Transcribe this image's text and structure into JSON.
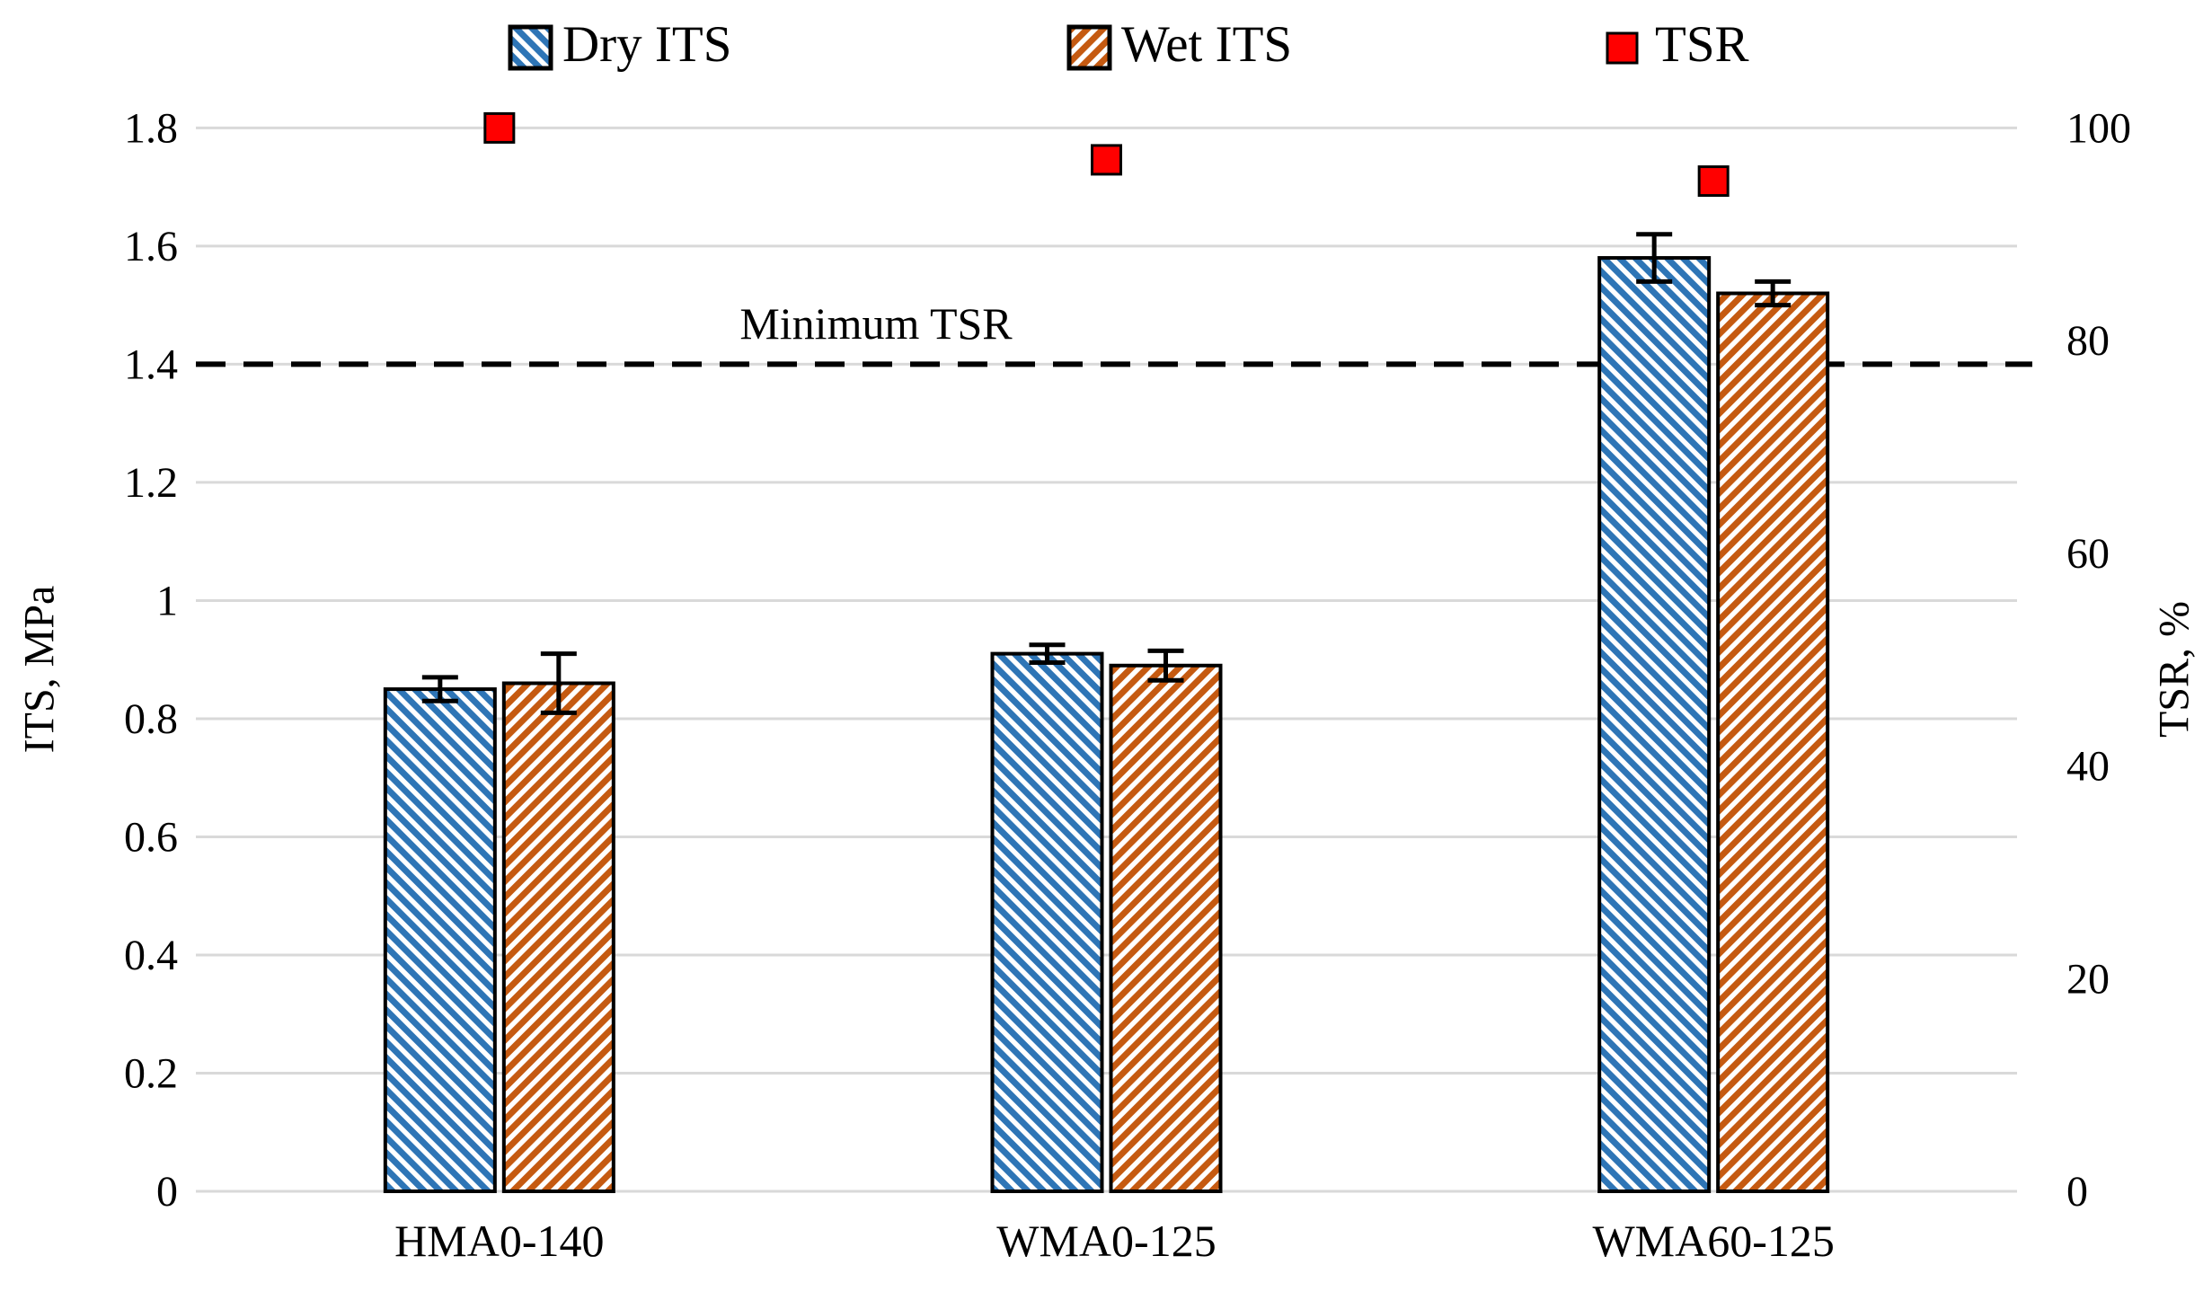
{
  "chart_data": {
    "type": "bar",
    "subtype": "dual-axis bar + scatter markers",
    "categories": [
      "HMA0-140",
      "WMA0-125",
      "WMA60-125"
    ],
    "series": [
      {
        "name": "Dry ITS",
        "type": "bar",
        "axis": "left",
        "values": [
          0.85,
          0.91,
          1.58
        ],
        "error_bars": [
          0.02,
          0.015,
          0.04
        ],
        "color": "#2E75B6",
        "hatch": "diagonal-down"
      },
      {
        "name": "Wet ITS",
        "type": "bar",
        "axis": "left",
        "values": [
          0.86,
          0.89,
          1.52
        ],
        "error_bars": [
          0.05,
          0.025,
          0.02
        ],
        "color": "#C55A11",
        "hatch": "diagonal-up"
      },
      {
        "name": "TSR",
        "type": "scatter",
        "axis": "right",
        "values": [
          100,
          97,
          95
        ],
        "color": "#FF0000",
        "marker": "square"
      }
    ],
    "left_axis": {
      "label": "ITS, MPa",
      "min": 0,
      "max": 1.8,
      "tick_values": [
        1.8,
        1.6,
        1.4,
        1.2,
        1.0,
        0.8,
        0.6,
        0.4,
        0.2,
        0
      ],
      "tick_labels": [
        "1.8",
        "1.6",
        "1.4",
        "1.2",
        "1",
        "0.8",
        "0.6",
        "0.4",
        "0.2",
        "0"
      ]
    },
    "right_axis": {
      "label": "TSR, %",
      "min": 0,
      "max": 100,
      "tick_values": [
        100,
        80,
        60,
        40,
        20,
        0
      ],
      "tick_labels": [
        "100",
        "80",
        "60",
        "40",
        "20",
        "0"
      ]
    },
    "annotation_line": {
      "label": "Minimum TSR",
      "left_axis_value": 1.4,
      "style": "dashed",
      "color": "#000000"
    },
    "grid": {
      "show": true,
      "color": "#D9D9D9"
    },
    "legend_position": "top",
    "bar_border_color": "#000000",
    "error_bar_color": "#000000"
  }
}
